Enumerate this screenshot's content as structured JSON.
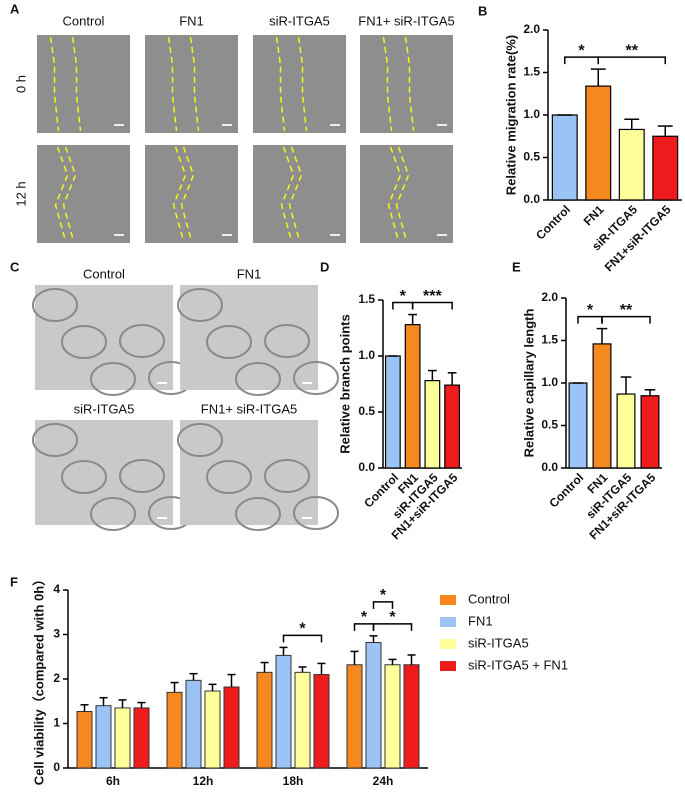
{
  "panel_labels": [
    "A",
    "B",
    "C",
    "D",
    "E",
    "F"
  ],
  "migration_images": {
    "columns": [
      "Control",
      "FN1",
      "siR-ITGA5",
      "FN1+ siR-ITGA5"
    ],
    "rows": [
      "0 h",
      "12 h"
    ]
  },
  "tube_images": {
    "labels": [
      "Control",
      "FN1",
      "siR-ITGA5",
      "FN1+ siR-ITGA5"
    ]
  },
  "chart_data": [
    {
      "type": "bar",
      "y_label": "Relative migration rate(%)",
      "categories": [
        "Control",
        "FN1",
        "siR-ITGA5",
        "FN1+siR-ITGA5"
      ],
      "values": [
        1.0,
        1.34,
        0.83,
        0.75
      ],
      "errors": [
        0,
        0.2,
        0.12,
        0.12
      ],
      "colors": [
        "#9cc3f5",
        "#f5891f",
        "#ffff9a",
        "#ee1c1c"
      ],
      "ylim": [
        0,
        2
      ],
      "yticks": [
        {
          "value": 0,
          "label": "0.0"
        },
        {
          "value": 0.5,
          "label": "0.5"
        },
        {
          "value": 1,
          "label": "1.0"
        },
        {
          "value": 1.5,
          "label": "1.5"
        },
        {
          "value": 2,
          "label": "2.0"
        }
      ],
      "annotations": [
        {
          "text": "*",
          "from": 0,
          "to": 1
        },
        {
          "text": "**",
          "from": 1,
          "to": 3
        }
      ]
    },
    {
      "type": "bar",
      "y_label": "Relative branch points",
      "categories": [
        "Control",
        "FN1",
        "siR-ITGA5",
        "FN1+siR-ITGA5"
      ],
      "values": [
        1.0,
        1.28,
        0.78,
        0.74
      ],
      "errors": [
        0,
        0.09,
        0.09,
        0.11
      ],
      "colors": [
        "#9cc3f5",
        "#f5891f",
        "#ffff9a",
        "#ee1c1c"
      ],
      "ylim": [
        0,
        1.5
      ],
      "yticks": [
        {
          "value": 0,
          "label": "0.0"
        },
        {
          "value": 0.5,
          "label": "0.5"
        },
        {
          "value": 1,
          "label": "1.0"
        },
        {
          "value": 1.5,
          "label": "1.5"
        }
      ],
      "annotations": [
        {
          "text": "*",
          "from": 0,
          "to": 1
        },
        {
          "text": "***",
          "from": 1,
          "to": 3
        }
      ]
    },
    {
      "type": "bar",
      "y_label": "Relative capillary length",
      "categories": [
        "Control",
        "FN1",
        "siR-ITGA5",
        "FN1+siR-ITGA5"
      ],
      "values": [
        1.0,
        1.46,
        0.87,
        0.85
      ],
      "errors": [
        0,
        0.18,
        0.2,
        0.07
      ],
      "colors": [
        "#9cc3f5",
        "#f5891f",
        "#ffff9a",
        "#ee1c1c"
      ],
      "ylim": [
        0,
        2
      ],
      "yticks": [
        {
          "value": 0,
          "label": "0.0"
        },
        {
          "value": 0.5,
          "label": "0.5"
        },
        {
          "value": 1,
          "label": "1.0"
        },
        {
          "value": 1.5,
          "label": "1.5"
        },
        {
          "value": 2,
          "label": "2.0"
        }
      ],
      "annotations": [
        {
          "text": "*",
          "from": 0,
          "to": 1
        },
        {
          "text": "**",
          "from": 1,
          "to": 3
        }
      ]
    },
    {
      "type": "grouped_bar",
      "y_label": "Cell viability（compared with 0h）",
      "categories": [
        "6h",
        "12h",
        "18h",
        "24h"
      ],
      "series": [
        {
          "name": "Control",
          "color": "#f5891f",
          "values": [
            1.27,
            1.7,
            2.15,
            2.32
          ],
          "errors": [
            0.15,
            0.22,
            0.22,
            0.3
          ]
        },
        {
          "name": "FN1",
          "color": "#9cc3f5",
          "values": [
            1.4,
            1.97,
            2.53,
            2.82
          ],
          "errors": [
            0.18,
            0.15,
            0.18,
            0.15
          ]
        },
        {
          "name": "siR-ITGA5",
          "color": "#ffff9a",
          "values": [
            1.35,
            1.73,
            2.15,
            2.32
          ],
          "errors": [
            0.18,
            0.15,
            0.12,
            0.12
          ]
        },
        {
          "name": "siR-ITGA5 + FN1",
          "color": "#ee1c1c",
          "values": [
            1.35,
            1.82,
            2.1,
            2.32
          ],
          "errors": [
            0.12,
            0.28,
            0.25,
            0.22
          ]
        }
      ],
      "ylim": [
        0,
        4
      ],
      "yticks": [
        0,
        1,
        2,
        3,
        4
      ],
      "annotations": [
        {
          "text": "*",
          "category": 2,
          "from": 1,
          "to": 3
        },
        {
          "text": "*",
          "category": 3,
          "from": 0,
          "to": 1
        },
        {
          "text": "*",
          "category": 3,
          "from": 1,
          "to": 3
        },
        {
          "text": "*",
          "category": 3,
          "from": 1,
          "to": 2
        }
      ]
    }
  ]
}
